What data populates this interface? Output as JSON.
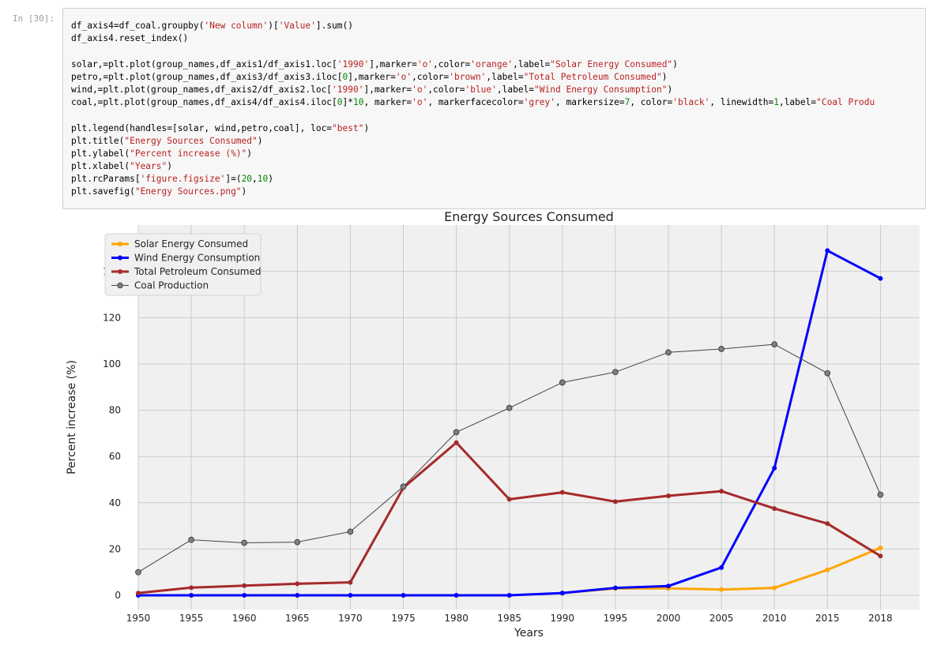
{
  "cell": {
    "prompt": "In [30]:",
    "code_lines": [
      [
        {
          "t": "df_axis4=df_coal.groupby("
        },
        {
          "t": "'New column'",
          "c": "str"
        },
        {
          "t": ")["
        },
        {
          "t": "'Value'",
          "c": "str"
        },
        {
          "t": "].sum()"
        }
      ],
      [
        {
          "t": "df_axis4.reset_index()"
        }
      ],
      [
        {
          "t": ""
        }
      ],
      [
        {
          "t": "solar,=plt.plot(group_names,df_axis1/df_axis1.loc["
        },
        {
          "t": "'1990'",
          "c": "str"
        },
        {
          "t": "],marker="
        },
        {
          "t": "'o'",
          "c": "str"
        },
        {
          "t": ",color="
        },
        {
          "t": "'orange'",
          "c": "str"
        },
        {
          "t": ",label="
        },
        {
          "t": "\"Solar Energy Consumed\"",
          "c": "str"
        },
        {
          "t": ")"
        }
      ],
      [
        {
          "t": "petro,=plt.plot(group_names,df_axis3/df_axis3.iloc["
        },
        {
          "t": "0",
          "c": "num"
        },
        {
          "t": "],marker="
        },
        {
          "t": "'o'",
          "c": "str"
        },
        {
          "t": ",color="
        },
        {
          "t": "'brown'",
          "c": "str"
        },
        {
          "t": ",label="
        },
        {
          "t": "\"Total Petroleum Consumed\"",
          "c": "str"
        },
        {
          "t": ")"
        }
      ],
      [
        {
          "t": "wind,=plt.plot(group_names,df_axis2/df_axis2.loc["
        },
        {
          "t": "'1990'",
          "c": "str"
        },
        {
          "t": "],marker="
        },
        {
          "t": "'o'",
          "c": "str"
        },
        {
          "t": ",color="
        },
        {
          "t": "'blue'",
          "c": "str"
        },
        {
          "t": ",label="
        },
        {
          "t": "\"Wind Energy Consumption\"",
          "c": "str"
        },
        {
          "t": ")"
        }
      ],
      [
        {
          "t": "coal,=plt.plot(group_names,df_axis4/df_axis4.iloc["
        },
        {
          "t": "0",
          "c": "num"
        },
        {
          "t": "]*"
        },
        {
          "t": "10",
          "c": "num"
        },
        {
          "t": ", marker="
        },
        {
          "t": "'o'",
          "c": "str"
        },
        {
          "t": ", markerfacecolor="
        },
        {
          "t": "'grey'",
          "c": "str"
        },
        {
          "t": ", markersize="
        },
        {
          "t": "7",
          "c": "num"
        },
        {
          "t": ", color="
        },
        {
          "t": "'black'",
          "c": "str"
        },
        {
          "t": ", linewidth="
        },
        {
          "t": "1",
          "c": "num"
        },
        {
          "t": ",label="
        },
        {
          "t": "\"Coal Produ",
          "c": "str"
        }
      ],
      [
        {
          "t": ""
        }
      ],
      [
        {
          "t": "plt.legend(handles=[solar, wind,petro,coal], loc="
        },
        {
          "t": "\"best\"",
          "c": "str"
        },
        {
          "t": ")"
        }
      ],
      [
        {
          "t": "plt.title("
        },
        {
          "t": "\"Energy Sources Consumed\"",
          "c": "str"
        },
        {
          "t": ")"
        }
      ],
      [
        {
          "t": "plt.ylabel("
        },
        {
          "t": "\"Percent increase (%)\"",
          "c": "str"
        },
        {
          "t": ")"
        }
      ],
      [
        {
          "t": "plt.xlabel("
        },
        {
          "t": "\"Years\"",
          "c": "str"
        },
        {
          "t": ")"
        }
      ],
      [
        {
          "t": "plt.rcParams["
        },
        {
          "t": "'figure.figsize'",
          "c": "str"
        },
        {
          "t": "]=("
        },
        {
          "t": "20",
          "c": "num"
        },
        {
          "t": ","
        },
        {
          "t": "10",
          "c": "num"
        },
        {
          "t": ")"
        }
      ],
      [
        {
          "t": "plt.savefig("
        },
        {
          "t": "\"Energy Sources.png\"",
          "c": "str"
        },
        {
          "t": ")"
        }
      ]
    ]
  },
  "colors": {
    "code_string": "#ba2121",
    "code_number": "#008800",
    "plot_background": "#f0f0f0",
    "grid": "#cbcbcb",
    "solar": "#ffa500",
    "wind": "#0000ff",
    "petroleum": "#a52a2a",
    "coal_line": "#444444",
    "coal_marker": "#808080"
  },
  "chart_data": {
    "type": "line",
    "title": "Energy Sources Consumed",
    "xlabel": "Years",
    "ylabel": "Percent increase (%)",
    "categories": [
      "1950",
      "1955",
      "1960",
      "1965",
      "1970",
      "1975",
      "1980",
      "1985",
      "1990",
      "1995",
      "2000",
      "2005",
      "2010",
      "2015",
      "2018"
    ],
    "yticks": [
      0,
      20,
      40,
      60,
      80,
      100,
      120,
      140
    ],
    "ylim": [
      -5,
      155
    ],
    "grid": true,
    "legend_position": "top-left",
    "series": [
      {
        "name": "Solar Energy Consumed",
        "color": "#ffa500",
        "line_width": 3,
        "marker": "dot",
        "values": [
          null,
          null,
          null,
          null,
          null,
          null,
          null,
          null,
          1,
          3,
          3,
          2.5,
          3.2,
          11,
          20.5
        ]
      },
      {
        "name": "Wind Energy Consumption",
        "color": "#0000ff",
        "line_width": 3,
        "marker": "dot",
        "values": [
          0,
          0,
          0,
          0,
          0,
          0,
          0,
          0,
          1,
          3.2,
          4,
          12,
          55,
          149,
          137
        ]
      },
      {
        "name": "Total Petroleum Consumed",
        "color": "#a52a2a",
        "line_width": 3,
        "marker": "dot",
        "values": [
          1,
          3.3,
          4.2,
          5,
          5.6,
          46.5,
          66,
          41.5,
          44.5,
          40.5,
          43,
          45,
          37.5,
          31,
          17
        ]
      },
      {
        "name": "Coal Production",
        "color": "#444444",
        "line_width": 1,
        "marker": "circle",
        "marker_fill": "#808080",
        "values": [
          10,
          24,
          22.7,
          23,
          27.5,
          47,
          70.5,
          81,
          92,
          96.5,
          105,
          106.5,
          108.5,
          96,
          43.5
        ]
      }
    ]
  }
}
